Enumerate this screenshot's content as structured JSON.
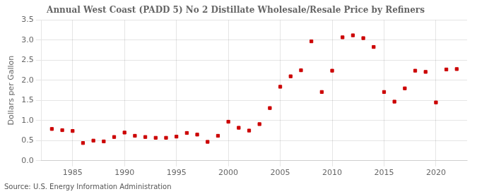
{
  "chart_data": {
    "type": "scatter",
    "title": "Annual West Coast (PADD 5) No 2 Distillate Wholesale/Resale Price by Refiners",
    "ylabel": "Dollars per Gallon",
    "annotations": [
      "Source: U.S. Energy Information Administration"
    ],
    "x": [
      1983,
      1984,
      1985,
      1986,
      1987,
      1988,
      1989,
      1990,
      1991,
      1992,
      1993,
      1994,
      1995,
      1996,
      1997,
      1998,
      1999,
      2000,
      2001,
      2002,
      2003,
      2004,
      2005,
      2006,
      2007,
      2008,
      2009,
      2010,
      2011,
      2012,
      2013,
      2014,
      2015,
      2016,
      2017,
      2018,
      2019,
      2020,
      2021,
      2022
    ],
    "values": [
      0.79,
      0.76,
      0.74,
      0.44,
      0.5,
      0.48,
      0.59,
      0.7,
      0.62,
      0.59,
      0.57,
      0.57,
      0.6,
      0.69,
      0.65,
      0.47,
      0.62,
      0.97,
      0.82,
      0.75,
      0.91,
      1.31,
      1.84,
      2.1,
      2.25,
      2.97,
      1.71,
      2.24,
      3.07,
      3.12,
      3.05,
      2.83,
      1.71,
      1.47,
      1.8,
      2.24,
      2.21,
      1.45,
      2.27,
      2.28
    ],
    "color": "#cc0000",
    "marker": "square",
    "xlim": [
      1982,
      2023
    ],
    "xticks": [
      1985,
      1990,
      1995,
      2000,
      2005,
      2010,
      2015,
      2020
    ],
    "ylim": [
      0.0,
      3.5
    ],
    "yticks": [
      {
        "value": 0.0,
        "label": "0.0"
      },
      0.5,
      {
        "value": 1.0,
        "label": "1.0"
      },
      1.5,
      {
        "value": 2.0,
        "label": "2.0"
      },
      2.5,
      {
        "value": 3.0,
        "label": "3.0"
      },
      3.5
    ],
    "grid": true
  }
}
